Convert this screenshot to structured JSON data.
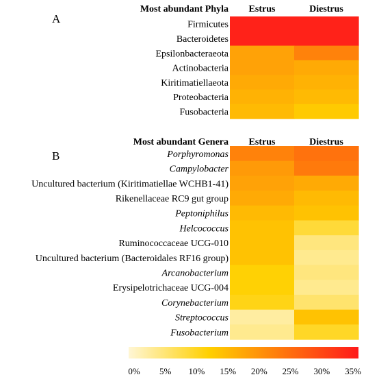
{
  "colors": {
    "scale_low": "#fff6d5",
    "scale_mid": "#ffd000",
    "scale_high": "#ff1a1a"
  },
  "chart_data": [
    {
      "type": "heatmap",
      "panel_letter": "A",
      "header": "Most abundant Phyla",
      "columns": [
        "Estrus",
        "Diestrus"
      ],
      "rows": [
        {
          "label": "Firmicutes",
          "italic": false,
          "values": [
            34,
            34
          ]
        },
        {
          "label": "Bacteroidetes",
          "italic": false,
          "values": [
            34,
            34
          ]
        },
        {
          "label": "Epsilonbacteraeota",
          "italic": false,
          "values": [
            18,
            22
          ]
        },
        {
          "label": "Actinobacteria",
          "italic": false,
          "values": [
            18,
            17
          ]
        },
        {
          "label": "Kiritimatiellaeota",
          "italic": false,
          "values": [
            17,
            16
          ]
        },
        {
          "label": "Proteobacteria",
          "italic": false,
          "values": [
            16,
            15
          ]
        },
        {
          "label": "Fusobacteria",
          "italic": false,
          "values": [
            15,
            13
          ]
        }
      ]
    },
    {
      "type": "heatmap",
      "panel_letter": "B",
      "header": "Most abundant Genera",
      "columns": [
        "Estrus",
        "Diestrus"
      ],
      "rows": [
        {
          "label": "Porphyromonas",
          "italic": true,
          "values": [
            22,
            24
          ]
        },
        {
          "label": "Campylobacter",
          "italic": true,
          "values": [
            19,
            23
          ]
        },
        {
          "label": "Uncultured bacterium (Kiritimatiellae WCHB1-41)",
          "italic": false,
          "values": [
            18,
            17
          ]
        },
        {
          "label": "Rikenellaceae RC9 gut group",
          "italic": false,
          "values": [
            17,
            15
          ]
        },
        {
          "label": "Peptoniphilus",
          "italic": true,
          "values": [
            15,
            14
          ]
        },
        {
          "label": "Helcococcus",
          "italic": true,
          "values": [
            14,
            9
          ]
        },
        {
          "label": "Ruminococcaceae UCG-010",
          "italic": false,
          "values": [
            14,
            5
          ]
        },
        {
          "label": "Uncultured bacterium (Bacteroidales RF16 group)",
          "italic": false,
          "values": [
            14,
            4
          ]
        },
        {
          "label": "Arcanobacterium",
          "italic": true,
          "values": [
            12,
            5
          ]
        },
        {
          "label": "Erysipelotrichaceae UCG-004",
          "italic": false,
          "values": [
            12,
            4
          ]
        },
        {
          "label": "Corynebacterium",
          "italic": true,
          "values": [
            11,
            6
          ]
        },
        {
          "label": "Streptococcus",
          "italic": true,
          "values": [
            3,
            14
          ]
        },
        {
          "label": "Fusobacterium",
          "italic": true,
          "values": [
            4,
            10
          ]
        }
      ]
    }
  ],
  "colorbar": {
    "min": 0,
    "max": 35,
    "ticks": [
      "0%",
      "5%",
      "10%",
      "15%",
      "20%",
      "25%",
      "30%",
      "35%"
    ]
  }
}
